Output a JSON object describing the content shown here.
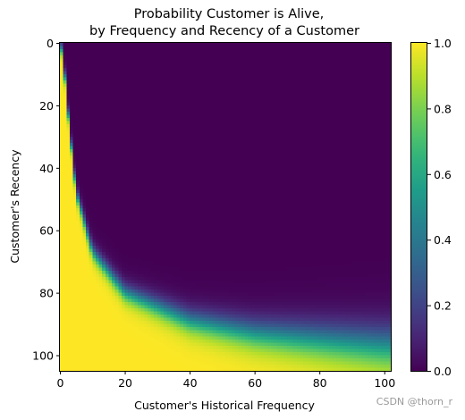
{
  "chart_data": {
    "type": "heatmap",
    "title_lines": [
      "Probability Customer is Alive,",
      "by Frequency and Recency of a Customer"
    ],
    "xlabel": "Customer's Historical Frequency",
    "ylabel": "Customer's Recency",
    "xlim": [
      0,
      102
    ],
    "ylim": [
      105,
      0
    ],
    "xticks": [
      0,
      20,
      40,
      60,
      80,
      100
    ],
    "yticks": [
      0,
      20,
      40,
      60,
      80,
      100
    ],
    "colorbar": {
      "colormap": "viridis",
      "range": [
        0.0,
        1.0
      ],
      "ticks": [
        "0.0",
        "0.2",
        "0.4",
        "0.6",
        "0.8",
        "1.0"
      ]
    },
    "boundary_p50_recency_by_frequency": [
      {
        "frequency": 0,
        "recency": 0
      },
      {
        "frequency": 1,
        "recency": 4
      },
      {
        "frequency": 2,
        "recency": 18
      },
      {
        "frequency": 5,
        "recency": 48
      },
      {
        "frequency": 10,
        "recency": 67
      },
      {
        "frequency": 20,
        "recency": 80
      },
      {
        "frequency": 40,
        "recency": 89
      },
      {
        "frequency": 60,
        "recency": 93
      },
      {
        "frequency": 80,
        "recency": 95
      },
      {
        "frequency": 100,
        "recency": 97
      }
    ]
  },
  "watermark": "CSDN @thorn_r"
}
